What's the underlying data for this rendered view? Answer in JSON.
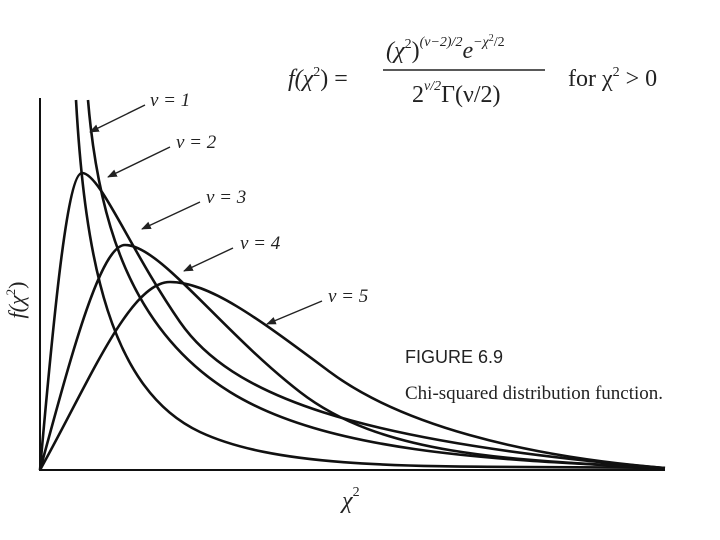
{
  "formula": {
    "lhs_open": "f(χ",
    "lhs_sup": "2",
    "lhs_close": ") =",
    "num_open": "(χ",
    "num_sup": "2",
    "num_close": ")",
    "num_exp": "(ν−2)/2",
    "num_e": "e",
    "num_e_exp": "−χ",
    "num_e_exp_sup": "2",
    "num_e_exp_end": "/2",
    "den_base": "2",
    "den_exp": "ν/2",
    "den_gamma": "Γ(ν/2)",
    "cond_open": "for χ",
    "cond_sup": "2",
    "cond_close": " > 0"
  },
  "curve_labels": [
    "ν = 1",
    "ν = 2",
    "ν = 3",
    "ν = 4",
    "ν = 5"
  ],
  "y_axis_label": {
    "text": "f(χ",
    "sup": "2",
    "close": ")"
  },
  "x_axis_label": {
    "text": "χ",
    "sup": "2"
  },
  "figure_number": "FIGURE 6.9",
  "caption": "Chi-squared distribution function."
}
